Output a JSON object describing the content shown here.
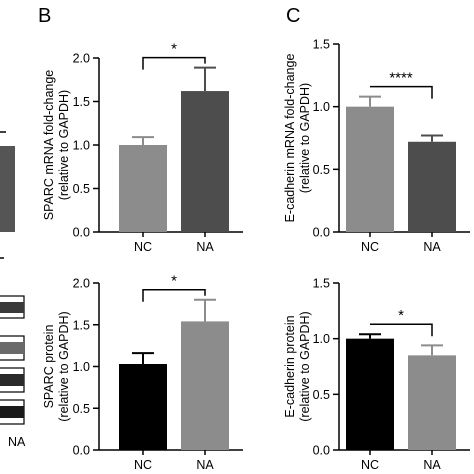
{
  "panel_letters": [
    "B",
    "C"
  ],
  "left_partial": {
    "label": "NA",
    "bar_color": "#555555"
  },
  "chart_data": [
    {
      "id": "b-top",
      "type": "bar",
      "categories": [
        "NC",
        "NA"
      ],
      "values": [
        1.0,
        1.62
      ],
      "errors": [
        0.09,
        0.27
      ],
      "colors": [
        "#8c8c8c",
        "#4d4d4d"
      ],
      "ylabel": [
        "SPARC mRNA fold-change",
        "(relative to GAPDH)"
      ],
      "ylim": [
        0,
        2.0
      ],
      "yticks": [
        "0.0",
        "0.5",
        "1.0",
        "1.5",
        "2.0"
      ],
      "significance": "*"
    },
    {
      "id": "c-top",
      "type": "bar",
      "categories": [
        "NC",
        "NA"
      ],
      "values": [
        1.0,
        0.72
      ],
      "errors": [
        0.08,
        0.05
      ],
      "colors": [
        "#8c8c8c",
        "#4d4d4d"
      ],
      "ylabel": [
        "E-cadherin mRNA fold-change",
        "(relative to GAPDH)"
      ],
      "ylim": [
        0,
        1.5
      ],
      "yticks": [
        "0.0",
        "0.5",
        "1.0",
        "1.5"
      ],
      "significance": "****"
    },
    {
      "id": "b-bottom",
      "type": "bar",
      "categories": [
        "NC",
        "NA"
      ],
      "values": [
        1.03,
        1.54
      ],
      "errors": [
        0.13,
        0.26
      ],
      "colors": [
        "#000000",
        "#8c8c8c"
      ],
      "ylabel": [
        "SPARC protein",
        "(relative to GAPDH)"
      ],
      "ylim": [
        0,
        2.0
      ],
      "yticks": [
        "0.0",
        "0.5",
        "1.0",
        "1.5",
        "2.0"
      ],
      "significance": "*"
    },
    {
      "id": "c-bottom",
      "type": "bar",
      "categories": [
        "NC",
        "NA"
      ],
      "values": [
        1.0,
        0.85
      ],
      "errors": [
        0.04,
        0.09
      ],
      "colors": [
        "#000000",
        "#8c8c8c"
      ],
      "ylabel": [
        "E-cadherin protein",
        "(relative to GAPDH)"
      ],
      "ylim": [
        0,
        1.5
      ],
      "yticks": [
        "0.0",
        "0.5",
        "1.0",
        "1.5"
      ],
      "significance": "*"
    }
  ]
}
